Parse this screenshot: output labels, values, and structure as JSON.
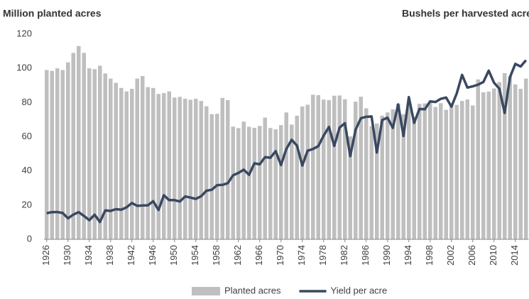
{
  "chart_data": {
    "type": "bar+line",
    "title": "Million planted acres",
    "y2_title": "Bushels per harvested acre",
    "xlim": [
      1925.5,
      2016.5
    ],
    "xticks": [
      1926,
      1930,
      1934,
      1938,
      1942,
      1946,
      1950,
      1954,
      1958,
      1962,
      1966,
      1970,
      1974,
      1978,
      1982,
      1986,
      1990,
      1994,
      1998,
      2002,
      2006,
      2010,
      2014
    ],
    "ylim": [
      0,
      120
    ],
    "yticks": [
      0,
      20,
      40,
      60,
      80,
      100,
      120
    ],
    "y2lim": [
      0,
      200
    ],
    "legend": "bottom",
    "grid": false,
    "x": [
      1926,
      1927,
      1928,
      1929,
      1930,
      1931,
      1932,
      1933,
      1934,
      1935,
      1936,
      1937,
      1938,
      1939,
      1940,
      1941,
      1942,
      1943,
      1944,
      1945,
      1946,
      1947,
      1948,
      1949,
      1950,
      1951,
      1952,
      1953,
      1954,
      1955,
      1956,
      1957,
      1958,
      1959,
      1960,
      1961,
      1962,
      1963,
      1964,
      1965,
      1966,
      1967,
      1968,
      1969,
      1970,
      1971,
      1972,
      1973,
      1974,
      1975,
      1976,
      1977,
      1978,
      1979,
      1980,
      1981,
      1982,
      1983,
      1984,
      1985,
      1986,
      1987,
      1988,
      1989,
      1990,
      1991,
      1992,
      1993,
      1994,
      1995,
      1996,
      1997,
      1998,
      1999,
      2000,
      2001,
      2002,
      2003,
      2004,
      2005,
      2006,
      2007,
      2008,
      2009,
      2010,
      2011,
      2012,
      2013,
      2014,
      2015,
      2016
    ],
    "series": [
      {
        "name": "Planted acres",
        "type": "bar",
        "color": "#bfbfbf",
        "values": [
          99,
          98.5,
          100,
          99,
          103.5,
          109,
          113,
          109,
          100,
          99.5,
          101.5,
          97,
          94,
          91.5,
          88.5,
          86.5,
          88,
          94,
          95.5,
          89,
          88.5,
          85,
          85.5,
          86.5,
          82.9,
          83.3,
          82.2,
          81.6,
          82.2,
          80.9,
          77.8,
          73.2,
          73.4,
          82.7,
          81.4,
          65.9,
          65,
          68.8,
          65.8,
          65.2,
          66.3,
          71.2,
          65.1,
          64.3,
          66.8,
          74.2,
          67.1,
          72.3,
          77.7,
          78.7,
          84.6,
          84.3,
          81.7,
          81.4,
          84,
          84.1,
          81.9,
          60.2,
          80.5,
          83.4,
          76.6,
          66.2,
          67.7,
          72.3,
          74.2,
          76,
          79.3,
          73.2,
          79.2,
          71.5,
          79.2,
          79.5,
          80.2,
          77.4,
          79.6,
          75.7,
          78.9,
          78.6,
          80.9,
          81.8,
          78.3,
          93.5,
          86,
          86.4,
          88.2,
          91.9,
          97.2,
          95.4,
          90.6,
          88,
          94
        ]
      },
      {
        "name": "Yield per acre",
        "type": "line",
        "axis": "y2",
        "color": "#3a4861",
        "values": [
          25.5,
          26.5,
          26.6,
          25.7,
          20.5,
          24.1,
          26.5,
          22.8,
          18.7,
          24,
          16.9,
          28.2,
          27.7,
          29.4,
          28.9,
          31.2,
          35.4,
          32.6,
          33,
          33.1,
          37.2,
          28.6,
          43,
          38.2,
          38.2,
          36.9,
          41.8,
          40.7,
          39.4,
          42,
          47.4,
          48.3,
          52.8,
          53.1,
          54.7,
          62.4,
          64.7,
          67.9,
          62.9,
          74.1,
          73.1,
          80.1,
          79.5,
          85.9,
          72.4,
          88.1,
          97,
          91.3,
          71.9,
          86.4,
          88,
          90.8,
          101,
          109.5,
          91,
          108.9,
          113.2,
          81.1,
          106.7,
          118,
          119.4,
          119.8,
          84.6,
          116.3,
          118.5,
          108.6,
          131.5,
          100.7,
          138.6,
          113.5,
          127.1,
          126.7,
          134.4,
          133.8,
          136.9,
          138.2,
          129.3,
          142.2,
          160.3,
          147.9,
          149.1,
          150.7,
          153.3,
          164.4,
          152.6,
          146.8,
          123.1,
          158.1,
          171,
          168.4,
          174.6
        ]
      }
    ]
  }
}
